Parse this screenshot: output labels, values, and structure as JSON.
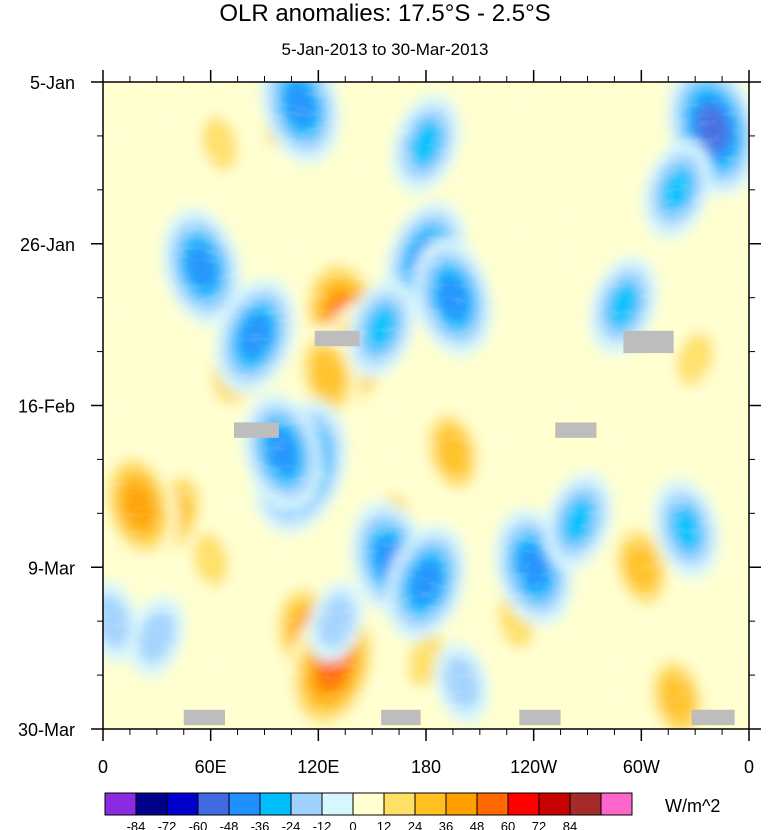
{
  "chart_data": {
    "type": "heatmap",
    "title": "OLR anomalies: 17.5°S - 2.5°S",
    "subtitle": "5-Jan-2013 to 30-Mar-2013",
    "x_ticks": [
      "0",
      "60E",
      "120E",
      "180",
      "120W",
      "60W",
      "0"
    ],
    "x_tick_values": [
      0,
      60,
      120,
      180,
      240,
      300,
      360
    ],
    "xlim": [
      0,
      360
    ],
    "y_ticks": [
      "5-Jan",
      "26-Jan",
      "16-Feb",
      "9-Mar",
      "30-Mar"
    ],
    "y_tick_days": [
      0,
      21,
      42,
      63,
      84
    ],
    "ylim_days": [
      0,
      84
    ],
    "colorbar": {
      "levels": [
        "-84",
        "-72",
        "-60",
        "-48",
        "-36",
        "-24",
        "-12",
        "0",
        "12",
        "24",
        "36",
        "48",
        "60",
        "72",
        "84"
      ],
      "colors": [
        "#8a2be2",
        "#00008b",
        "#0000cd",
        "#4169e1",
        "#1e90ff",
        "#00bfff",
        "#a0d2ff",
        "#d7f7ff",
        "#ffffd0",
        "#ffe066",
        "#ffc020",
        "#ffa000",
        "#ff6a00",
        "#ff0000",
        "#c80000",
        "#a52a2a",
        "#ff66cc"
      ],
      "units": "W/m^2"
    },
    "anomaly_features": [
      {
        "lon": 135,
        "day": 31,
        "value": 65
      },
      {
        "lon": 140,
        "day": 36,
        "value": 55
      },
      {
        "lon": 125,
        "day": 38,
        "value": 45
      },
      {
        "lon": 75,
        "day": 37,
        "value": 40
      },
      {
        "lon": 115,
        "day": 72,
        "value": 50
      },
      {
        "lon": 128,
        "day": 76,
        "value": 62
      },
      {
        "lon": 60,
        "day": 62,
        "value": 35
      },
      {
        "lon": 40,
        "day": 56,
        "value": 38
      },
      {
        "lon": 20,
        "day": 55,
        "value": 55
      },
      {
        "lon": 160,
        "day": 57,
        "value": 35
      },
      {
        "lon": 195,
        "day": 48,
        "value": 38
      },
      {
        "lon": 190,
        "day": 62,
        "value": 30
      },
      {
        "lon": 300,
        "day": 63,
        "value": 40
      },
      {
        "lon": 330,
        "day": 36,
        "value": 35
      },
      {
        "lon": 320,
        "day": 80,
        "value": 38
      },
      {
        "lon": 100,
        "day": 5,
        "value": 30
      },
      {
        "lon": 65,
        "day": 8,
        "value": 35
      },
      {
        "lon": 180,
        "day": 75,
        "value": 35
      },
      {
        "lon": 230,
        "day": 70,
        "value": 30
      },
      {
        "lon": 110,
        "day": 50,
        "value": -66
      },
      {
        "lon": 100,
        "day": 48,
        "value": -55
      },
      {
        "lon": 85,
        "day": 33,
        "value": -58
      },
      {
        "lon": 55,
        "day": 24,
        "value": -50
      },
      {
        "lon": 180,
        "day": 23,
        "value": -56
      },
      {
        "lon": 195,
        "day": 28,
        "value": -48
      },
      {
        "lon": 155,
        "day": 32,
        "value": -45
      },
      {
        "lon": 110,
        "day": 3,
        "value": -50
      },
      {
        "lon": 180,
        "day": 8,
        "value": -40
      },
      {
        "lon": 160,
        "day": 62,
        "value": -55
      },
      {
        "lon": 180,
        "day": 65,
        "value": -48
      },
      {
        "lon": 240,
        "day": 63,
        "value": -55
      },
      {
        "lon": 265,
        "day": 57,
        "value": -45
      },
      {
        "lon": 340,
        "day": 6,
        "value": -60
      },
      {
        "lon": 320,
        "day": 14,
        "value": -40
      },
      {
        "lon": 325,
        "day": 58,
        "value": -36
      },
      {
        "lon": 130,
        "day": 70,
        "value": -30
      },
      {
        "lon": 200,
        "day": 78,
        "value": -35
      },
      {
        "lon": 30,
        "day": 72,
        "value": -32
      },
      {
        "lon": 5,
        "day": 70,
        "value": -30
      },
      {
        "lon": 290,
        "day": 29,
        "value": -40
      }
    ],
    "missing_data": [
      {
        "lon0": 45,
        "lon1": 68,
        "day0": 81.5,
        "day1": 83.5
      },
      {
        "lon0": 155,
        "lon1": 177,
        "day0": 81.5,
        "day1": 83.5
      },
      {
        "lon0": 232,
        "lon1": 255,
        "day0": 81.5,
        "day1": 83.5
      },
      {
        "lon0": 328,
        "lon1": 352,
        "day0": 81.5,
        "day1": 83.5
      },
      {
        "lon0": 118,
        "lon1": 143,
        "day0": 32.3,
        "day1": 34.3
      },
      {
        "lon0": 73,
        "lon1": 98,
        "day0": 44.2,
        "day1": 46.2
      },
      {
        "lon0": 252,
        "lon1": 275,
        "day0": 44.2,
        "day1": 46.2
      },
      {
        "lon0": 290,
        "lon1": 318,
        "day0": 32.3,
        "day1": 35.2
      }
    ]
  }
}
